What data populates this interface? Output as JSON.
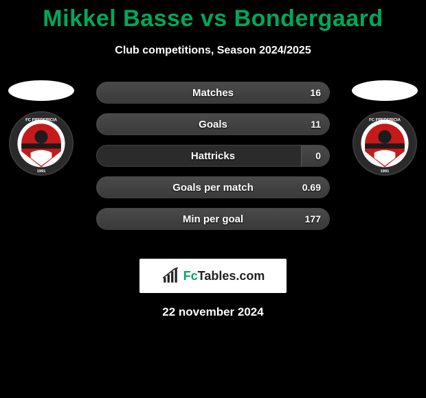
{
  "title": "Mikkel Basse vs Bondergaard",
  "subtitle": "Club competitions, Season 2024/2025",
  "date": "22 november 2024",
  "logo": {
    "text_a": "Fc",
    "text_b": "Tables",
    "text_c": ".com",
    "accent_color": "#00a85a"
  },
  "colors": {
    "title": "#00a85a",
    "background": "#000000",
    "stat_track": "#2b2b2b",
    "stat_fill": "#404040",
    "text": "#ffffff",
    "logo_bg": "#ffffff"
  },
  "badge": {
    "ring_color": "#2a2a2a",
    "shield_red": "#c61a1a",
    "shield_dark": "#1c1c1c",
    "club_text_top": "FC FREDERICIA",
    "year": "1991"
  },
  "stats": [
    {
      "label": "Matches",
      "value": "16",
      "fill_pct": 100
    },
    {
      "label": "Goals",
      "value": "11",
      "fill_pct": 100
    },
    {
      "label": "Hattricks",
      "value": "0",
      "fill_pct": 12
    },
    {
      "label": "Goals per match",
      "value": "0.69",
      "fill_pct": 100
    },
    {
      "label": "Min per goal",
      "value": "177",
      "fill_pct": 100
    }
  ]
}
